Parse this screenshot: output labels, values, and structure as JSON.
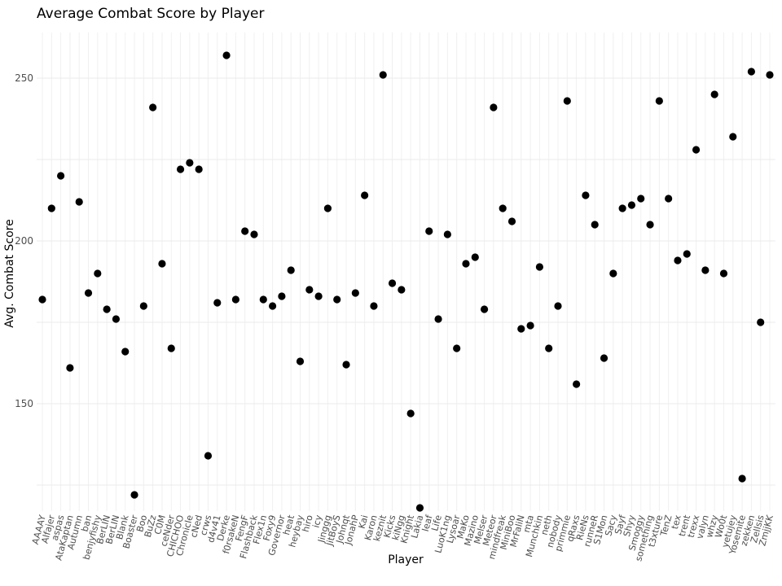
{
  "chart_data": {
    "type": "scatter",
    "title": "Average Combat Score by Player",
    "xlabel": "Player",
    "ylabel": "Avg. Combat Score",
    "yticks": [
      150,
      200,
      250
    ],
    "ylim": [
      117,
      264
    ],
    "grid": true,
    "categories": [
      "AAAAY",
      "Alfajer",
      "aspas",
      "AtaKaptan",
      "Autumn",
      "ban",
      "benjyfishy",
      "BerLIN",
      "BerLIN",
      "Blank",
      "Boaster",
      "Boo",
      "BuZz",
      "C0M",
      "ceNder",
      "CHICHOO",
      "Chronicle",
      "cNed",
      "crws",
      "d4v41",
      "Derke",
      "f0rsakeN",
      "FengF",
      "Flashback",
      "Flex1n",
      "Foxy9",
      "Governor",
      "heat",
      "heybay",
      "hiro",
      "icy",
      "Jinggg",
      "JitBoyS",
      "Johnqt",
      "JonahP",
      "Kai",
      "Karon",
      "keznit",
      "Kicks",
      "kiNgg",
      "Knight",
      "Lakia",
      "leaf",
      "Life",
      "LuoK1ng",
      "Lysoar",
      "MaKo",
      "Mazino",
      "Melser",
      "Meteor",
      "mindfreak",
      "MiniBoo",
      "MrFaliN",
      "mta",
      "Munchkin",
      "neth",
      "nobody",
      "primmie",
      "qRaxs",
      "RieNs",
      "runneR",
      "S1Mon",
      "Sacy",
      "Sayf",
      "Shyy",
      "Smoggy",
      "something",
      "t3xture",
      "TenZ",
      "tex",
      "trent",
      "trexx",
      "valyn",
      "whzy",
      "Wo0t",
      "yetujey",
      "Yosemite",
      "zekken",
      "Zellsis",
      "ZmjjKK"
    ],
    "values": [
      182,
      210,
      220,
      161,
      212,
      184,
      190,
      179,
      176,
      166,
      122,
      180,
      241,
      193,
      167,
      222,
      224,
      222,
      134,
      181,
      257,
      182,
      203,
      202,
      182,
      180,
      183,
      191,
      163,
      185,
      183,
      210,
      182,
      162,
      184,
      214,
      180,
      251,
      187,
      185,
      147,
      118,
      203,
      176,
      202,
      167,
      193,
      195,
      179,
      241,
      210,
      206,
      173,
      174,
      192,
      167,
      180,
      243,
      156,
      214,
      205,
      164,
      190,
      210,
      211,
      213,
      205,
      243,
      213,
      194,
      196,
      228,
      191,
      245,
      190,
      232,
      127,
      252,
      175,
      251
    ]
  }
}
